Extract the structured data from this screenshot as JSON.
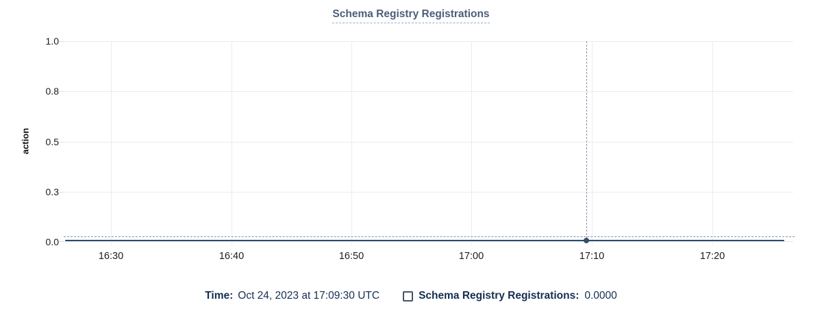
{
  "chart_data": {
    "type": "line",
    "title": "Schema Registry Registrations",
    "xlabel": "",
    "ylabel": "action",
    "ylim": [
      0,
      1.0
    ],
    "grid": true,
    "ytick_labels": [
      "1.0",
      "0.8",
      "0.5",
      "0.3",
      "0.0"
    ],
    "ytick_values": [
      1.0,
      0.75,
      0.5,
      0.25,
      0.0
    ],
    "xtick_labels": [
      "16:30",
      "16:40",
      "16:50",
      "17:00",
      "17:10",
      "17:20"
    ],
    "series": [
      {
        "name": "Schema Registry Registrations",
        "x": [
          "16:30",
          "16:40",
          "16:50",
          "17:00",
          "17:10",
          "17:20"
        ],
        "values": [
          0,
          0,
          0,
          0,
          0,
          0
        ],
        "color": "#2c4a6e",
        "style": "flat line at 0 across entire visible time range"
      }
    ],
    "hover_point": {
      "time": "Oct 24, 2023 at 17:09:30 UTC",
      "x_label_near": "17:10",
      "value": 0.0
    },
    "legend_position": "bottom"
  },
  "title": {
    "text": "Schema Registry Registrations"
  },
  "axes": {
    "y_title": "action",
    "yticks": [
      "1.0",
      "0.8",
      "0.5",
      "0.3",
      "0.0"
    ],
    "xticks": [
      "16:30",
      "16:40",
      "16:50",
      "17:00",
      "17:10",
      "17:20"
    ]
  },
  "legend": {
    "time_label": "Time:",
    "time_value": "Oct 24, 2023 at 17:09:30 UTC",
    "checkbox_checked": false,
    "series_label": "Schema Registry Registrations:",
    "series_value": "0.0000"
  },
  "colors": {
    "title": "#4a5e7c",
    "title_underline": "#97abc4",
    "series_line": "#2c4a6e",
    "crosshair": "#8094aa",
    "gridline": "#ececec",
    "tick_text": "#1c1c1c",
    "legend_text": "#142e52",
    "checkbox_border": "#44536a",
    "background": "#ffffff"
  }
}
